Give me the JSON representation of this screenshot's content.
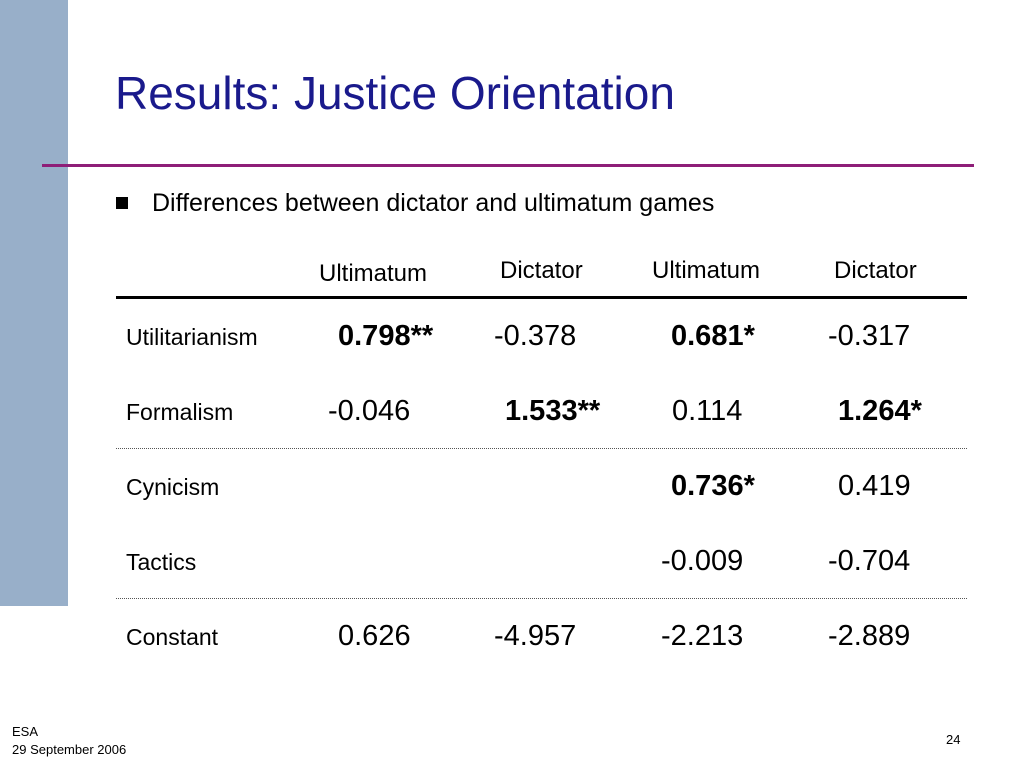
{
  "slide": {
    "title": "Results: Justice Orientation",
    "bullet": "Differences between dictator and ultimatum games",
    "colors": {
      "title": "#1a1a8c",
      "rule": "#8e1e78",
      "sidebar": "#98afc9"
    }
  },
  "table": {
    "columns": [
      "Ultimatum",
      "Dictator",
      "Ultimatum",
      "Dictator"
    ],
    "rows": [
      {
        "label": "Utilitarianism",
        "cells": [
          "0.798**",
          "-0.378",
          "0.681*",
          "-0.317"
        ]
      },
      {
        "label": "Formalism",
        "cells": [
          "-0.046",
          "1.533**",
          "0.114",
          "1.264*"
        ]
      },
      {
        "label": "Cynicism",
        "cells": [
          "",
          "",
          "0.736*",
          "0.419"
        ]
      },
      {
        "label": "Tactics",
        "cells": [
          "",
          "",
          "-0.009",
          "-0.704"
        ]
      },
      {
        "label": "Constant",
        "cells": [
          "0.626",
          "-4.957",
          "-2.213",
          "-2.889"
        ]
      }
    ]
  },
  "footer": {
    "org": "ESA",
    "date": "29 September 2006",
    "page": "24"
  }
}
